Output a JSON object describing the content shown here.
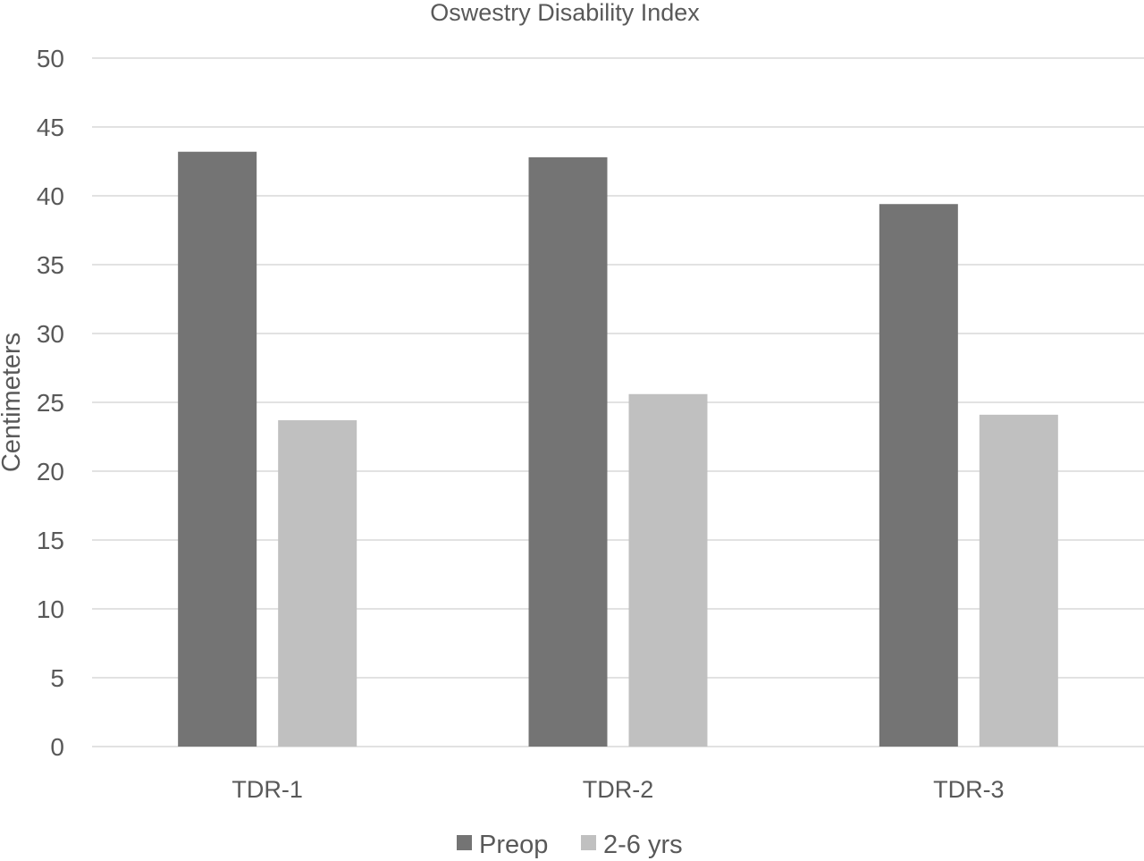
{
  "chart_data": {
    "type": "bar",
    "title": "Oswestry Disability Index",
    "xlabel": "",
    "ylabel": "Centimeters",
    "categories": [
      "TDR-1",
      "TDR-2",
      "TDR-3"
    ],
    "series": [
      {
        "name": "Preop",
        "values": [
          43.2,
          42.8,
          39.4
        ],
        "color": "#747474"
      },
      {
        "name": "2-6 yrs",
        "values": [
          23.7,
          25.6,
          24.1
        ],
        "color": "#c0c0c0"
      }
    ],
    "ylim": [
      0,
      50
    ],
    "yticks": [
      "0",
      "5",
      "10",
      "15",
      "20",
      "25",
      "30",
      "35",
      "40",
      "45",
      "50"
    ],
    "grid": true,
    "legend_position": "bottom"
  }
}
